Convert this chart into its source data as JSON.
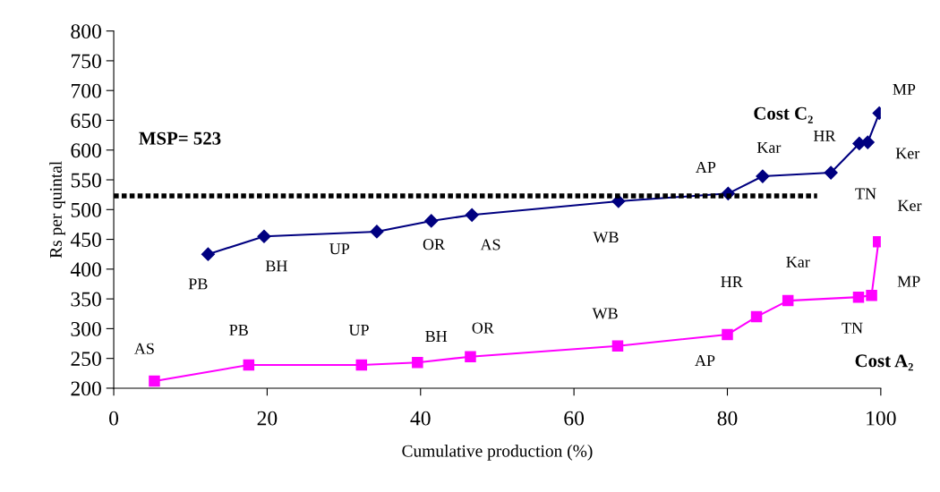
{
  "chart_data": {
    "type": "line",
    "xlabel": "Cumulative production (%)",
    "ylabel": "Rs per quintal",
    "xlim": [
      0,
      100
    ],
    "xticks": [
      0,
      20,
      40,
      60,
      80,
      100
    ],
    "ylim": [
      200,
      800
    ],
    "yticks": [
      200,
      250,
      300,
      350,
      400,
      450,
      500,
      550,
      600,
      650,
      700,
      750,
      800
    ],
    "grid": false,
    "legend": false,
    "line_style": "solid",
    "series": [
      {
        "name": "Cost C₂",
        "color": "#000080",
        "marker": "diamond",
        "x": [
          12.3,
          19.6,
          34.3,
          41.4,
          46.7,
          65.8,
          80.1,
          84.6,
          93.5,
          97.2,
          98.3,
          99.8
        ],
        "values": [
          425,
          455,
          463,
          481,
          491,
          514,
          527,
          556,
          562,
          611,
          613,
          662
        ]
      },
      {
        "name": "Cost A₂",
        "color": "#ff00ff",
        "marker": "square",
        "x": [
          5.3,
          17.6,
          32.3,
          39.6,
          46.5,
          65.7,
          80.0,
          83.8,
          87.9,
          97.1,
          98.8,
          99.7
        ],
        "values": [
          212,
          239,
          239,
          243,
          253,
          271,
          290,
          320,
          347,
          353,
          356,
          446
        ]
      }
    ],
    "ref_lines": [
      {
        "axis": "y",
        "value": 523,
        "label": "MSP= 523",
        "color": "#000000",
        "line_style": "dotted"
      }
    ],
    "annotations": [
      {
        "text": "PB",
        "x": 12.3,
        "y": 425
      },
      {
        "text": "BH",
        "x": 19.6,
        "y": 455
      },
      {
        "text": "UP",
        "x": 34.3,
        "y": 463
      },
      {
        "text": "OR",
        "x": 41.4,
        "y": 481
      },
      {
        "text": "AS",
        "x": 46.7,
        "y": 491
      },
      {
        "text": "WB",
        "x": 65.8,
        "y": 514
      },
      {
        "text": "AP",
        "x": 80.1,
        "y": 527
      },
      {
        "text": "Kar",
        "x": 84.6,
        "y": 556
      },
      {
        "text": "TN",
        "x": 93.5,
        "y": 562
      },
      {
        "text": "HR",
        "x": 97.2,
        "y": 611
      },
      {
        "text": "Ker",
        "x": 98.3,
        "y": 613
      },
      {
        "text": "MP",
        "x": 99.8,
        "y": 662
      },
      {
        "text": "AS",
        "x": 5.3,
        "y": 212
      },
      {
        "text": "PB",
        "x": 17.6,
        "y": 239
      },
      {
        "text": "UP",
        "x": 32.3,
        "y": 239
      },
      {
        "text": "BH",
        "x": 39.6,
        "y": 243
      },
      {
        "text": "OR",
        "x": 46.5,
        "y": 253
      },
      {
        "text": "WB",
        "x": 65.7,
        "y": 271
      },
      {
        "text": "AP",
        "x": 80.0,
        "y": 290
      },
      {
        "text": "HR",
        "x": 83.8,
        "y": 320
      },
      {
        "text": "Kar",
        "x": 87.9,
        "y": 347
      },
      {
        "text": "TN",
        "x": 97.1,
        "y": 353
      },
      {
        "text": "MP",
        "x": 98.8,
        "y": 356
      },
      {
        "text": "Ker",
        "x": 99.7,
        "y": 446
      }
    ]
  }
}
